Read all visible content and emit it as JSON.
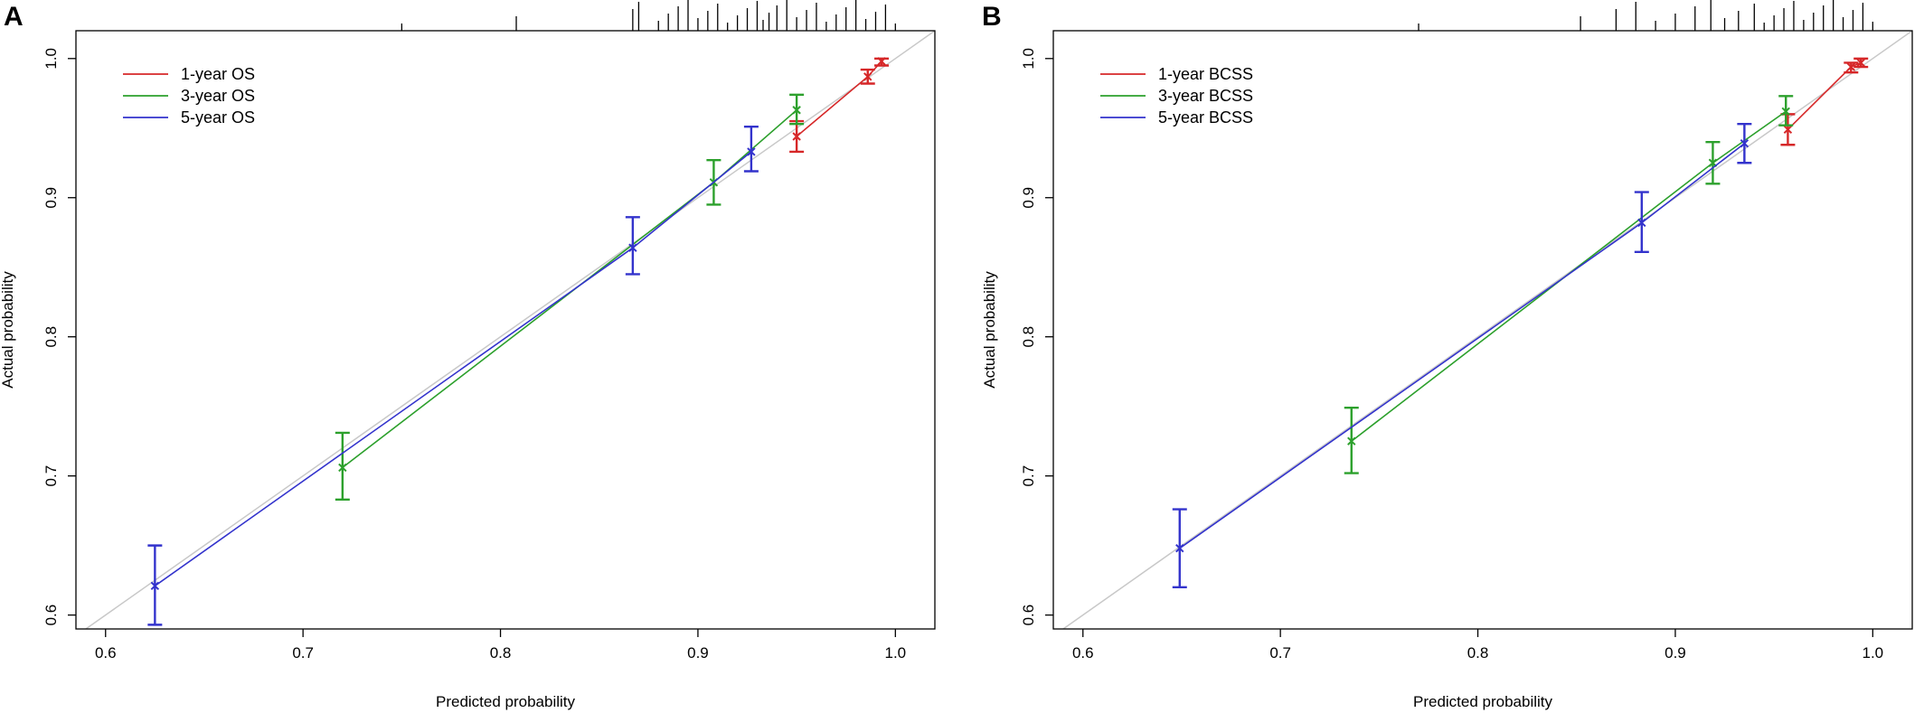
{
  "colors": {
    "1-year": "#d62728",
    "3-year": "#2ca02c",
    "5-year": "#3333cc",
    "diagonal": "#c8c8c8",
    "ticks_rug": "#000000"
  },
  "chart_data": [
    {
      "type": "scatter",
      "panel_label": "A",
      "title": "",
      "xlabel": "Predicted probability",
      "ylabel": "Actual probability",
      "xlim": [
        0.585,
        1.02
      ],
      "ylim": [
        0.59,
        1.02
      ],
      "xticks": [
        "0.6",
        "0.7",
        "0.8",
        "0.9",
        "1.0"
      ],
      "yticks": [
        "0.6",
        "0.7",
        "0.8",
        "0.9",
        "1.0"
      ],
      "grid": false,
      "legend_position": "top-left",
      "diagonal_reference": true,
      "rug_x": [
        0.75,
        0.808,
        0.867,
        0.87,
        0.88,
        0.885,
        0.89,
        0.895,
        0.9,
        0.905,
        0.91,
        0.915,
        0.92,
        0.925,
        0.93,
        0.933,
        0.936,
        0.94,
        0.945,
        0.95,
        0.955,
        0.96,
        0.965,
        0.97,
        0.975,
        0.98,
        0.985,
        0.99,
        0.995,
        1.0
      ],
      "series": [
        {
          "name": "1-year OS",
          "color_key": "1-year",
          "points": [
            {
              "x": 0.95,
              "y": 0.944,
              "lo": 0.933,
              "hi": 0.955
            },
            {
              "x": 0.986,
              "y": 0.987,
              "lo": 0.982,
              "hi": 0.992
            },
            {
              "x": 0.993,
              "y": 0.998,
              "lo": 0.995,
              "hi": 1.0
            }
          ]
        },
        {
          "name": "3-year OS",
          "color_key": "3-year",
          "points": [
            {
              "x": 0.72,
              "y": 0.706,
              "lo": 0.683,
              "hi": 0.731
            },
            {
              "x": 0.908,
              "y": 0.911,
              "lo": 0.895,
              "hi": 0.927
            },
            {
              "x": 0.95,
              "y": 0.963,
              "lo": 0.953,
              "hi": 0.974
            }
          ]
        },
        {
          "name": "5-year OS",
          "color_key": "5-year",
          "points": [
            {
              "x": 0.625,
              "y": 0.621,
              "lo": 0.593,
              "hi": 0.65
            },
            {
              "x": 0.867,
              "y": 0.864,
              "lo": 0.845,
              "hi": 0.886
            },
            {
              "x": 0.927,
              "y": 0.933,
              "lo": 0.919,
              "hi": 0.951
            }
          ]
        }
      ]
    },
    {
      "type": "scatter",
      "panel_label": "B",
      "title": "",
      "xlabel": "Predicted probability",
      "ylabel": "Actual probability",
      "xlim": [
        0.585,
        1.02
      ],
      "ylim": [
        0.59,
        1.02
      ],
      "xticks": [
        "0.6",
        "0.7",
        "0.8",
        "0.9",
        "1.0"
      ],
      "yticks": [
        "0.6",
        "0.7",
        "0.8",
        "0.9",
        "1.0"
      ],
      "grid": false,
      "legend_position": "top-left",
      "diagonal_reference": true,
      "rug_x": [
        0.77,
        0.852,
        0.87,
        0.88,
        0.89,
        0.9,
        0.91,
        0.918,
        0.925,
        0.932,
        0.94,
        0.945,
        0.95,
        0.955,
        0.96,
        0.965,
        0.97,
        0.975,
        0.98,
        0.985,
        0.99,
        0.995,
        1.0
      ],
      "series": [
        {
          "name": "1-year BCSS",
          "color_key": "1-year",
          "points": [
            {
              "x": 0.957,
              "y": 0.949,
              "lo": 0.938,
              "hi": 0.96
            },
            {
              "x": 0.989,
              "y": 0.994,
              "lo": 0.99,
              "hi": 0.997
            },
            {
              "x": 0.994,
              "y": 0.997,
              "lo": 0.994,
              "hi": 1.0
            }
          ]
        },
        {
          "name": "3-year BCSS",
          "color_key": "3-year",
          "points": [
            {
              "x": 0.736,
              "y": 0.725,
              "lo": 0.702,
              "hi": 0.749
            },
            {
              "x": 0.919,
              "y": 0.925,
              "lo": 0.91,
              "hi": 0.94
            },
            {
              "x": 0.956,
              "y": 0.962,
              "lo": 0.952,
              "hi": 0.973
            }
          ]
        },
        {
          "name": "5-year BCSS",
          "color_key": "5-year",
          "points": [
            {
              "x": 0.649,
              "y": 0.648,
              "lo": 0.62,
              "hi": 0.676
            },
            {
              "x": 0.883,
              "y": 0.882,
              "lo": 0.861,
              "hi": 0.904
            },
            {
              "x": 0.935,
              "y": 0.939,
              "lo": 0.925,
              "hi": 0.953
            }
          ]
        }
      ]
    }
  ]
}
